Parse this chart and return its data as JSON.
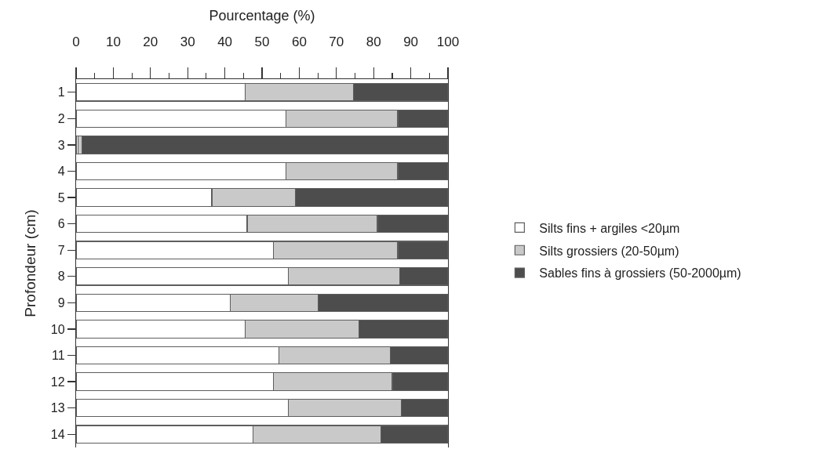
{
  "chart_data": {
    "type": "bar",
    "orientation": "horizontal",
    "stacked": true,
    "xlabel": "Pourcentage (%)",
    "ylabel": "Profondeur (cm)",
    "categories": [
      "1",
      "2",
      "3",
      "4",
      "5",
      "6",
      "7",
      "8",
      "9",
      "10",
      "11",
      "12",
      "13",
      "14"
    ],
    "series": [
      {
        "name": "Silts fins + argiles <20µm",
        "color": "#ffffff",
        "values": [
          45.5,
          56.5,
          0.5,
          56.5,
          36.5,
          46,
          53,
          57,
          41.5,
          45.5,
          54.5,
          53,
          57,
          47.5
        ]
      },
      {
        "name": "Silts grossiers (20-50µm)",
        "color": "#c9c9c9",
        "values": [
          29,
          30,
          1,
          30,
          22.5,
          35,
          33.5,
          30,
          23.5,
          30.5,
          30,
          32,
          30.5,
          34.5
        ]
      },
      {
        "name": "Sables fins à grossiers (50-2000µm)",
        "color": "#4d4d4d",
        "values": [
          25.5,
          13.5,
          98.5,
          13.5,
          41,
          19,
          13.5,
          13,
          35,
          24,
          15.5,
          15,
          12.5,
          18
        ]
      }
    ],
    "xlim": [
      0,
      100
    ],
    "xticks": [
      0,
      {
        "value": 5,
        "label": null
      },
      10,
      {
        "value": 15,
        "label": null
      },
      20,
      {
        "value": 25,
        "label": null
      },
      30,
      {
        "value": 35,
        "label": null
      },
      40,
      {
        "value": 45,
        "label": null
      },
      50,
      {
        "value": 55,
        "label": null
      },
      60,
      {
        "value": 65,
        "label": null
      },
      70,
      {
        "value": 75,
        "label": null
      },
      80,
      {
        "value": 85,
        "label": null
      },
      90,
      {
        "value": 95,
        "label": null
      },
      100
    ],
    "legend": "right"
  }
}
